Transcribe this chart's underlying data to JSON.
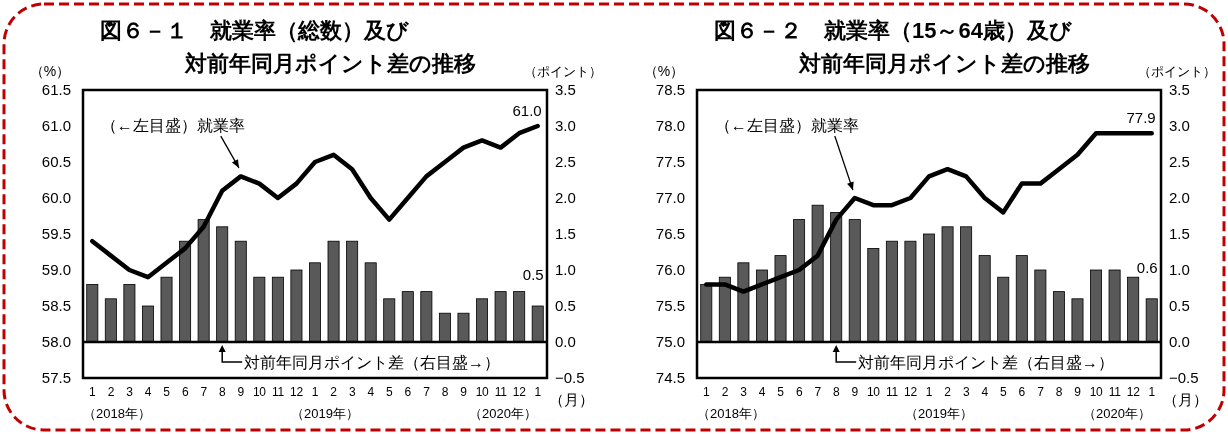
{
  "chart_data": [
    {
      "type": "bar",
      "title": "図６－１　就業率（総数）及び",
      "subtitle": "対前年同月ポイント差の推移",
      "xlabel": "（月）",
      "ylabel": "（%）",
      "y2label": "（ポイント）",
      "categories": [
        "1",
        "2",
        "3",
        "4",
        "5",
        "6",
        "7",
        "8",
        "9",
        "10",
        "11",
        "12",
        "1",
        "2",
        "3",
        "4",
        "5",
        "6",
        "7",
        "8",
        "9",
        "10",
        "11",
        "12",
        "1"
      ],
      "series": [
        {
          "axis": "y2",
          "color": "#595959",
          "values": [
            0.8,
            0.6,
            0.8,
            0.5,
            0.9,
            1.4,
            1.7,
            1.6,
            1.4,
            0.9,
            0.9,
            1.0,
            1.1,
            1.4,
            1.4,
            1.1,
            0.6,
            0.7,
            0.7,
            0.4,
            0.4,
            0.6,
            0.7,
            0.7,
            0.5
          ],
          "value_labels": [
            null,
            null,
            null,
            null,
            null,
            null,
            null,
            null,
            null,
            null,
            null,
            null,
            null,
            null,
            null,
            null,
            null,
            null,
            null,
            null,
            null,
            null,
            null,
            null,
            "0.5"
          ]
        },
        {
          "type": "line",
          "color": "#000000",
          "values": [
            59.4,
            59.2,
            59.0,
            58.9,
            59.1,
            59.3,
            59.6,
            60.1,
            60.3,
            60.2,
            60.0,
            60.2,
            60.5,
            60.6,
            60.4,
            60.0,
            59.7,
            60.0,
            60.3,
            60.5,
            60.7,
            60.8,
            60.7,
            60.9,
            61.0
          ],
          "value_labels": [
            null,
            null,
            null,
            null,
            null,
            null,
            null,
            null,
            null,
            null,
            null,
            null,
            null,
            null,
            null,
            null,
            null,
            null,
            null,
            null,
            null,
            null,
            null,
            null,
            "61.0"
          ]
        }
      ],
      "ylim": [
        57.5,
        61.5
      ],
      "yticks": [
        57.5,
        {
          "value": 58,
          "label": "58.0"
        },
        58.5,
        {
          "value": 59,
          "label": "59.0"
        },
        59.5,
        {
          "value": 60,
          "label": "60.0"
        },
        60.5,
        {
          "value": 61,
          "label": "61.0"
        },
        61.5
      ],
      "y2lim": [
        -0.5,
        3.5
      ],
      "y2ticks": [
        {
          "value": -0.5,
          "label": "−0.5"
        },
        {
          "value": 0,
          "label": "0.0"
        },
        0.5,
        {
          "value": 1,
          "label": "1.0"
        },
        1.5,
        {
          "value": 2,
          "label": "2.0"
        },
        2.5,
        {
          "value": 3,
          "label": "3.0"
        },
        3.5
      ],
      "ref_lines": [
        {
          "axis": "y2",
          "value": 0,
          "color": "#000000"
        }
      ],
      "annotations": [
        "（←左目盛）就業率",
        "対前年同月ポイント差（右目盛→）",
        "（2018年）",
        "（2019年）",
        "（2020年）"
      ]
    },
    {
      "type": "bar",
      "title": "図６－２　就業率（15～64歳）及び",
      "subtitle": "対前年同月ポイント差の推移",
      "xlabel": "（月）",
      "ylabel": "（%）",
      "y2label": "（ポイント）",
      "categories": [
        "1",
        "2",
        "3",
        "4",
        "5",
        "6",
        "7",
        "8",
        "9",
        "10",
        "11",
        "12",
        "1",
        "2",
        "3",
        "4",
        "5",
        "6",
        "7",
        "8",
        "9",
        "10",
        "11",
        "12",
        "1"
      ],
      "series": [
        {
          "axis": "y2",
          "color": "#595959",
          "values": [
            0.8,
            0.9,
            1.1,
            1.0,
            1.2,
            1.7,
            1.9,
            1.8,
            1.7,
            1.3,
            1.4,
            1.4,
            1.5,
            1.6,
            1.6,
            1.2,
            0.9,
            1.2,
            1.0,
            0.7,
            0.6,
            1.0,
            1.0,
            0.9,
            0.6
          ],
          "value_labels": [
            null,
            null,
            null,
            null,
            null,
            null,
            null,
            null,
            null,
            null,
            null,
            null,
            null,
            null,
            null,
            null,
            null,
            null,
            null,
            null,
            null,
            null,
            null,
            null,
            "0.6"
          ]
        },
        {
          "type": "line",
          "color": "#000000",
          "values": [
            75.8,
            75.8,
            75.7,
            75.8,
            75.9,
            76.0,
            76.2,
            76.7,
            77.0,
            76.9,
            76.9,
            77.0,
            77.3,
            77.4,
            77.3,
            77.0,
            76.8,
            77.2,
            77.2,
            77.4,
            77.6,
            77.9,
            77.9,
            77.9,
            77.9
          ],
          "value_labels": [
            null,
            null,
            null,
            null,
            null,
            null,
            null,
            null,
            null,
            null,
            null,
            null,
            null,
            null,
            null,
            null,
            null,
            null,
            null,
            null,
            null,
            null,
            null,
            null,
            "77.9"
          ]
        }
      ],
      "ylim": [
        74.5,
        78.5
      ],
      "yticks": [
        74.5,
        {
          "value": 75,
          "label": "75.0"
        },
        75.5,
        {
          "value": 76,
          "label": "76.0"
        },
        76.5,
        {
          "value": 77,
          "label": "77.0"
        },
        77.5,
        {
          "value": 78,
          "label": "78.0"
        },
        78.5
      ],
      "y2lim": [
        -0.5,
        3.5
      ],
      "y2ticks": [
        {
          "value": -0.5,
          "label": "−0.5"
        },
        {
          "value": 0,
          "label": "0.0"
        },
        0.5,
        {
          "value": 1,
          "label": "1.0"
        },
        1.5,
        {
          "value": 2,
          "label": "2.0"
        },
        2.5,
        {
          "value": 3,
          "label": "3.0"
        },
        3.5
      ],
      "ref_lines": [
        {
          "axis": "y2",
          "value": 0,
          "color": "#000000"
        }
      ],
      "annotations": [
        "（←左目盛）就業率",
        "対前年同月ポイント差（右目盛→）",
        "（2018年）",
        "（2019年）",
        "（2020年）"
      ]
    }
  ]
}
